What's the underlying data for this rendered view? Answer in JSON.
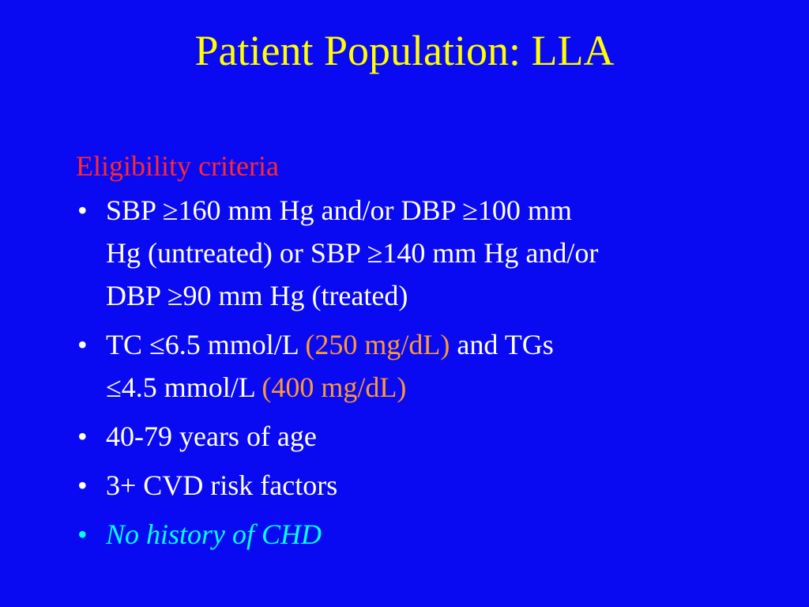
{
  "slide": {
    "title": "Patient Population: LLA",
    "heading": "Eligibility criteria",
    "bullet_char": "•",
    "bullets": [
      {
        "lines": [
          "SBP ≥160 mm Hg and/or DBP ≥100 mm",
          "Hg (untreated) or SBP ≥140 mm Hg and/or",
          "DBP ≥90 mm Hg (treated)"
        ]
      },
      {
        "line1_a": "TC ≤6.5 mmol/L ",
        "line1_b": "(250 mg/dL)",
        "line1_c": " and TGs",
        "line2_a": "≤4.5 mmol/L ",
        "line2_b": "(400 mg/dL)"
      },
      {
        "text": "40-79 years of age"
      },
      {
        "text": "3+ CVD risk factors"
      },
      {
        "text": "No history of CHD"
      }
    ]
  },
  "colors": {
    "background": "#0a0af2",
    "title": "#ffff00",
    "heading": "#ff2a2a",
    "body_text": "#ffffff",
    "highlight_units": "#ff9933",
    "italic_bullet": "#00ffff"
  }
}
